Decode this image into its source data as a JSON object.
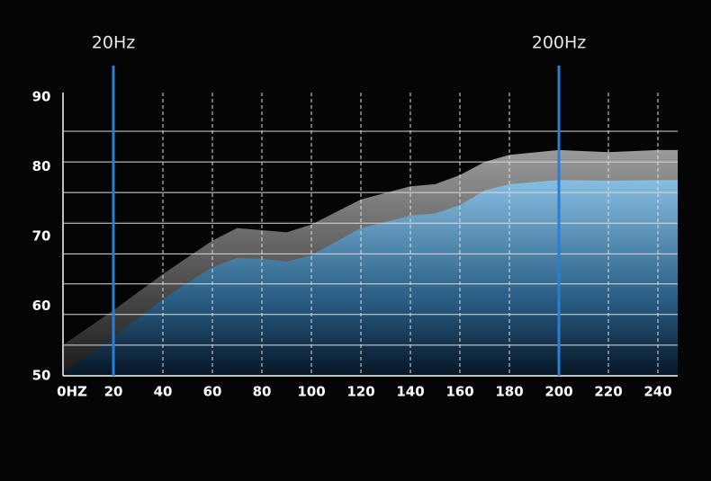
{
  "chart_data": {
    "type": "area",
    "x": [
      0,
      20,
      40,
      60,
      70,
      80,
      90,
      100,
      120,
      140,
      150,
      160,
      170,
      180,
      200,
      220,
      240,
      248
    ],
    "series": [
      {
        "color": "#8c8c8c",
        "values": [
          54.5,
          59.4,
          64.6,
          69.4,
          71.2,
          70.9,
          70.6,
          71.7,
          75.3,
          77.2,
          77.5,
          78.8,
          80.7,
          81.7,
          82.4,
          82.1,
          82.4,
          82.4
        ]
      },
      {
        "color": "#7fb2d8",
        "values": [
          50.5,
          55.5,
          61.0,
          65.6,
          66.9,
          66.8,
          66.4,
          67.3,
          71.2,
          73.0,
          73.3,
          74.5,
          76.6,
          77.5,
          78.1,
          78.0,
          78.1,
          78.1
        ]
      }
    ],
    "xlim": [
      0,
      248
    ],
    "xticks": [
      {
        "value": 0,
        "label": "0HZ"
      },
      20,
      40,
      60,
      80,
      100,
      120,
      140,
      160,
      180,
      200,
      220,
      240
    ],
    "ylim": [
      50,
      90
    ],
    "yticks": [
      50,
      60,
      70,
      80,
      90
    ],
    "ygrid": [
      54.4,
      58.8,
      63.2,
      67.5,
      71.9,
      76.3,
      80.7,
      85.1
    ],
    "markers": [
      {
        "x": 20,
        "label": "20Hz"
      },
      {
        "x": 200,
        "label": "200Hz"
      }
    ],
    "marker_color": "#2a7fd4"
  }
}
